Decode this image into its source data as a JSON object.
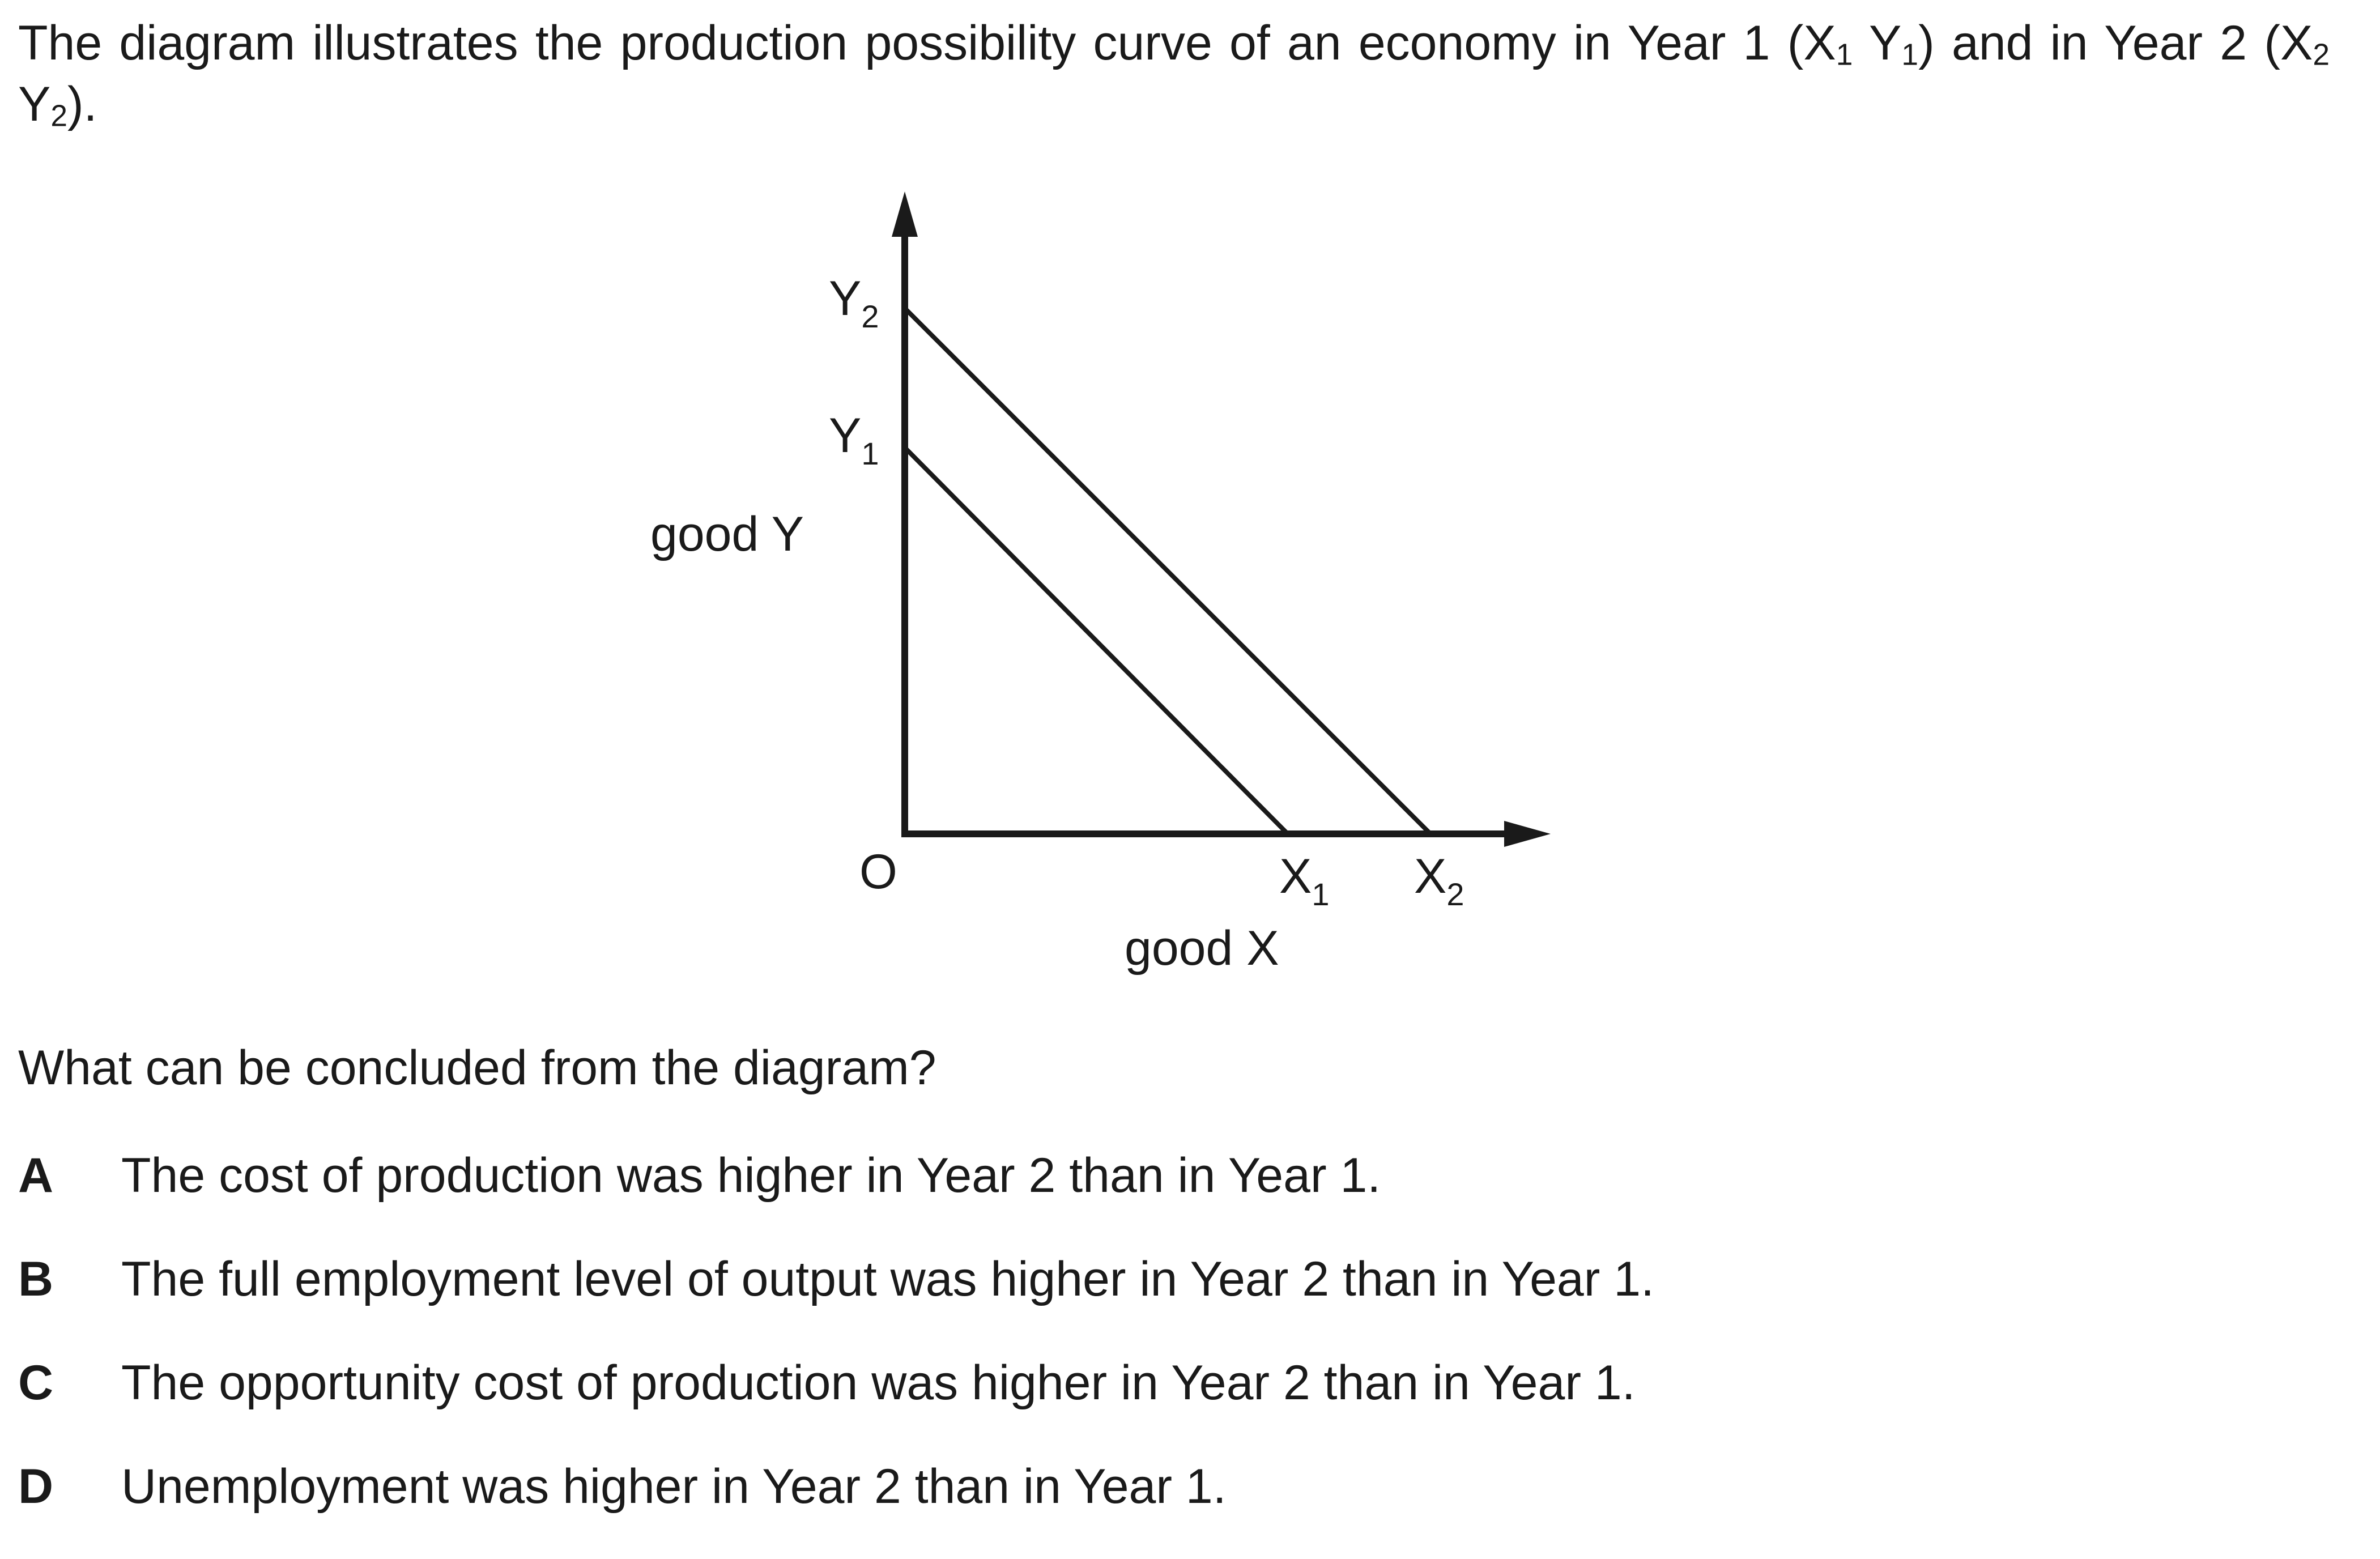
{
  "intro": {
    "text_before": "The diagram illustrates the production possibility curve of an economy in Year 1 (X",
    "sub1": "1",
    "text_mid1": " Y",
    "sub2": "1",
    "text_mid2": ") and in Year 2 (X",
    "sub3": "2",
    "text_mid3": " Y",
    "sub4": "2",
    "text_after": ")."
  },
  "diagram": {
    "y_axis_label": "good Y",
    "x_axis_label": "good X",
    "origin_label": "O",
    "points": {
      "Y2": {
        "letter": "Y",
        "sub": "2"
      },
      "Y1": {
        "letter": "Y",
        "sub": "1"
      },
      "X1": {
        "letter": "X",
        "sub": "1"
      },
      "X2": {
        "letter": "X",
        "sub": "2"
      }
    }
  },
  "question": "What can be concluded from the diagram?",
  "options": [
    {
      "letter": "A",
      "text": "The cost of production was higher in Year 2 than in Year 1."
    },
    {
      "letter": "B",
      "text": "The full employment level of output was higher in Year 2 than in Year 1."
    },
    {
      "letter": "C",
      "text": "The opportunity cost of production was higher in Year 2 than in Year 1."
    },
    {
      "letter": "D",
      "text": "Unemployment was higher in Year 2 than in Year 1."
    }
  ]
}
